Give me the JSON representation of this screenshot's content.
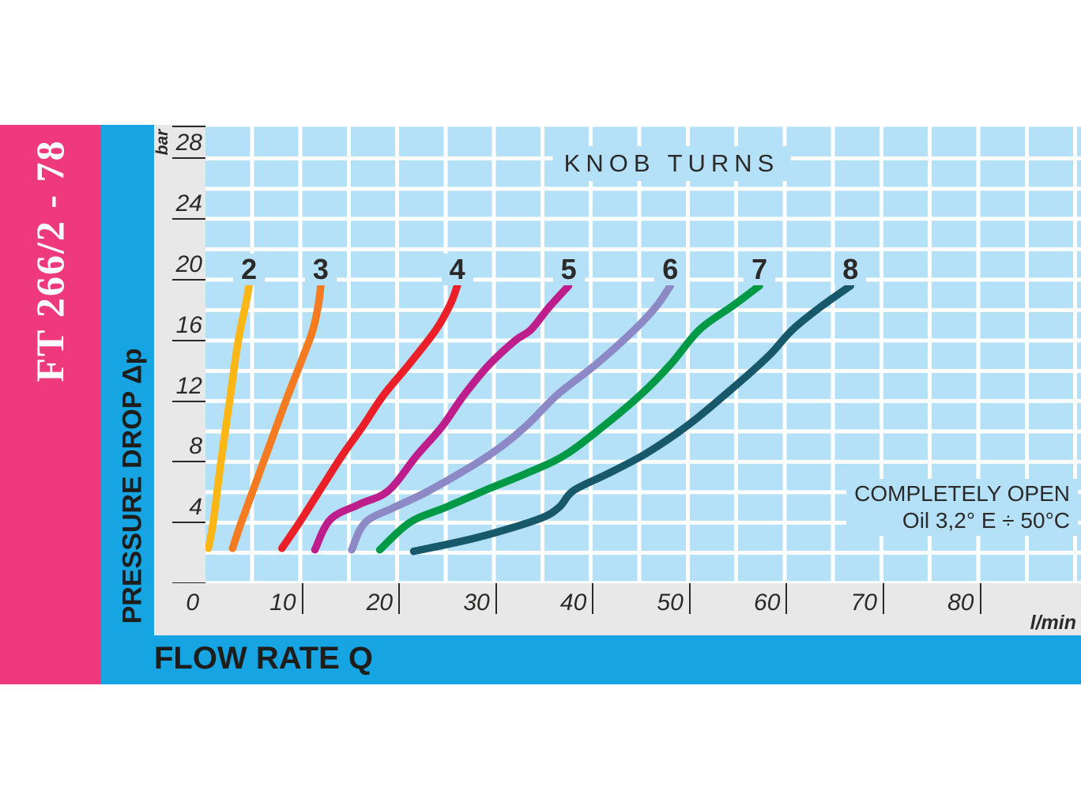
{
  "banner": {
    "model_code": "FT 266/2 - 78"
  },
  "y_axis": {
    "title": "PRESSURE DROP Δp",
    "unit": "bar"
  },
  "x_axis": {
    "title": "FLOW RATE Q",
    "unit": "l/min"
  },
  "colors": {
    "banner_pink": "#ee3a7c",
    "band_blue": "#16a4e2",
    "grid_blue": "#b4e1f8",
    "scale_gray": "#e8e8e8",
    "text_dark": "#2b2a29"
  },
  "chart_data": {
    "type": "line",
    "title": "KNOB TURNS",
    "annotation": {
      "line1": "COMPLETELY OPEN",
      "line2": "Oil 3,2° E ÷ 50°C"
    },
    "xlabel": "FLOW RATE Q (l/min)",
    "ylabel": "PRESSURE DROP Δp (bar)",
    "xlim": [
      0,
      90.4
    ],
    "ylim": [
      0,
      30.2
    ],
    "grid": {
      "x_step": 5,
      "y_step": 2,
      "grid_on": true
    },
    "x_ticks": [
      {
        "v": 0,
        "label": "0",
        "tick": false
      },
      {
        "v": 10,
        "label": "10",
        "tick": true
      },
      {
        "v": 20,
        "label": "20",
        "tick": true
      },
      {
        "v": 30,
        "label": "30",
        "tick": true
      },
      {
        "v": 40,
        "label": "40",
        "tick": true
      },
      {
        "v": 50,
        "label": "50",
        "tick": true
      },
      {
        "v": 60,
        "label": "60",
        "tick": true
      },
      {
        "v": 70,
        "label": "70",
        "tick": true
      },
      {
        "v": 80,
        "label": "80",
        "tick": true
      }
    ],
    "y_ticks": [
      {
        "v": 30.1,
        "label": ""
      },
      {
        "v": 28,
        "label": "28"
      },
      {
        "v": 24,
        "label": "24"
      },
      {
        "v": 20,
        "label": "20"
      },
      {
        "v": 16,
        "label": "16"
      },
      {
        "v": 12,
        "label": "12"
      },
      {
        "v": 8,
        "label": "8"
      },
      {
        "v": 4,
        "label": "4"
      },
      {
        "v": 0,
        "label": "0",
        "below": true
      }
    ],
    "series": [
      {
        "name": "2",
        "color": "#fcb615",
        "points": [
          [
            0.3,
            2.3
          ],
          [
            0.8,
            4
          ],
          [
            1.6,
            8
          ],
          [
            2.5,
            12
          ],
          [
            3.1,
            14.8
          ],
          [
            3.6,
            16.7
          ],
          [
            4.2,
            18.5
          ],
          [
            4.5,
            19.6
          ]
        ]
      },
      {
        "name": "3",
        "color": "#f47b20",
        "points": [
          [
            2.8,
            2.3
          ],
          [
            3.7,
            4
          ],
          [
            6.0,
            8
          ],
          [
            8.3,
            12
          ],
          [
            10.0,
            14.8
          ],
          [
            11.1,
            16.7
          ],
          [
            11.7,
            18.5
          ],
          [
            11.9,
            19.6
          ]
        ]
      },
      {
        "name": "4",
        "color": "#eb1f27",
        "points": [
          [
            7.9,
            2.3
          ],
          [
            9.7,
            4
          ],
          [
            11.8,
            6.1
          ],
          [
            14.1,
            8.4
          ],
          [
            16.2,
            10.3
          ],
          [
            18.4,
            12.4
          ],
          [
            21.0,
            14.4
          ],
          [
            23.8,
            16.7
          ],
          [
            25.3,
            18.4
          ],
          [
            26.0,
            19.6
          ]
        ]
      },
      {
        "name": "5",
        "color": "#be1e8c",
        "points": [
          [
            11.3,
            2.2
          ],
          [
            12.9,
            4.2
          ],
          [
            15.9,
            5.2
          ],
          [
            18.9,
            6.1
          ],
          [
            21.8,
            8.4
          ],
          [
            24.4,
            10.3
          ],
          [
            26.7,
            12.4
          ],
          [
            29.3,
            14.4
          ],
          [
            32.0,
            16.0
          ],
          [
            33.6,
            16.7
          ],
          [
            35.5,
            18.2
          ],
          [
            37.5,
            19.6
          ]
        ]
      },
      {
        "name": "6",
        "color": "#8d89c6",
        "points": [
          [
            15.1,
            2.2
          ],
          [
            16.5,
            4
          ],
          [
            19.5,
            5
          ],
          [
            23.1,
            6.1
          ],
          [
            29.2,
            8.4
          ],
          [
            33.0,
            10.3
          ],
          [
            36.3,
            12.4
          ],
          [
            40.3,
            14.4
          ],
          [
            44.3,
            16.7
          ],
          [
            46.5,
            18.2
          ],
          [
            48.0,
            19.6
          ]
        ]
      },
      {
        "name": "7",
        "color": "#009a47",
        "points": [
          [
            18.0,
            2.2
          ],
          [
            21.1,
            4
          ],
          [
            24.8,
            5
          ],
          [
            28.8,
            6.1
          ],
          [
            33.0,
            7.2
          ],
          [
            37.0,
            8.4
          ],
          [
            41.0,
            10.3
          ],
          [
            44.9,
            12.4
          ],
          [
            48.0,
            14.4
          ],
          [
            51.0,
            16.7
          ],
          [
            54.5,
            18.3
          ],
          [
            57.2,
            19.6
          ]
        ]
      },
      {
        "name": "8",
        "color": "#17596b",
        "points": [
          [
            21.5,
            2.1
          ],
          [
            28.0,
            3.0
          ],
          [
            34.3,
            4.2
          ],
          [
            36.5,
            5.0
          ],
          [
            38.0,
            6.1
          ],
          [
            41.5,
            7.2
          ],
          [
            45.1,
            8.4
          ],
          [
            48.5,
            9.8
          ],
          [
            51.0,
            11.0
          ],
          [
            53.6,
            12.4
          ],
          [
            56.5,
            14.0
          ],
          [
            58.5,
            15.2
          ],
          [
            60.6,
            16.7
          ],
          [
            63.5,
            18.2
          ],
          [
            66.6,
            19.6
          ]
        ]
      }
    ]
  }
}
